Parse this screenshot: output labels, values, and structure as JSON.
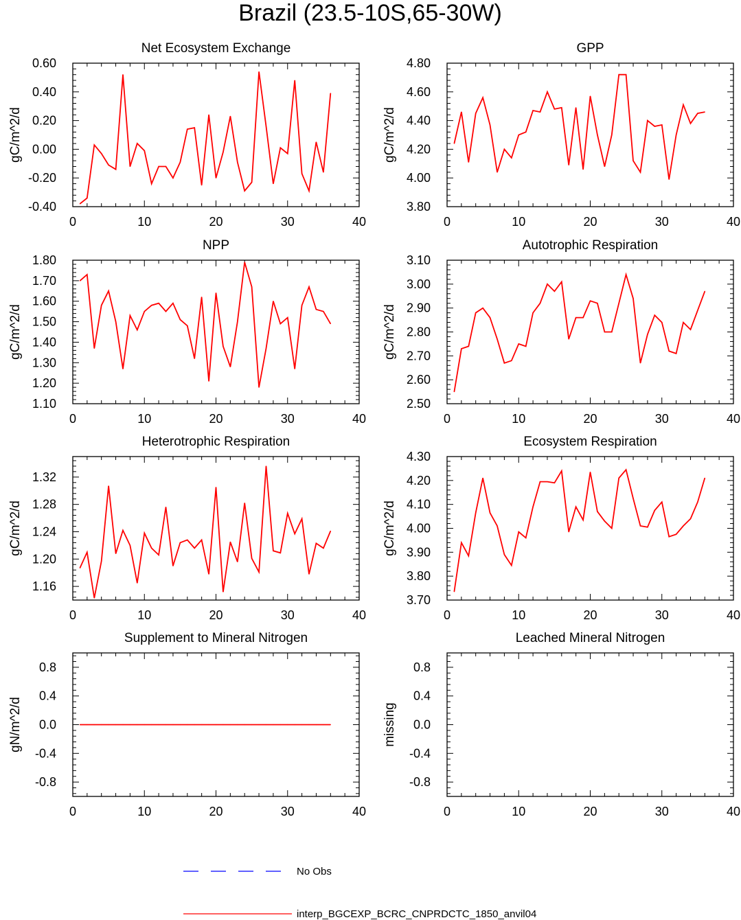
{
  "title": "Brazil (23.5-10S,65-30W)",
  "series_color": "#ff0000",
  "obs_color": "#0000ff",
  "legend": {
    "obs_label": "No Obs",
    "model_label": "interp_BGCEXP_BCRC_CNPRDCTC_1850_anvil04"
  },
  "chart_data": [
    {
      "type": "line",
      "title": "Net Ecosystem Exchange",
      "ylabel": "gC/m^2/d",
      "xlim": [
        0,
        40
      ],
      "ylim": [
        -0.4,
        0.6
      ],
      "xticks": [
        0,
        10,
        20,
        30,
        40
      ],
      "xtick_labels": [
        "0",
        "10",
        "20",
        "30",
        "40"
      ],
      "yticks": [
        -0.4,
        -0.2,
        0.0,
        0.2,
        0.4,
        0.6
      ],
      "ytick_labels": [
        "-0.40",
        "-0.20",
        "0.00",
        "0.20",
        "0.40",
        "0.60"
      ],
      "x": [
        1,
        2,
        3,
        4,
        5,
        6,
        7,
        8,
        9,
        10,
        11,
        12,
        13,
        14,
        15,
        16,
        17,
        18,
        19,
        20,
        21,
        22,
        23,
        24,
        25,
        26,
        27,
        28,
        29,
        30,
        31,
        32,
        33,
        34,
        35,
        36
      ],
      "values": [
        -0.38,
        -0.34,
        0.03,
        -0.03,
        -0.11,
        -0.14,
        0.52,
        -0.12,
        0.04,
        -0.01,
        -0.24,
        -0.12,
        -0.12,
        -0.2,
        -0.09,
        0.14,
        0.15,
        -0.25,
        0.24,
        -0.2,
        -0.02,
        0.23,
        -0.09,
        -0.29,
        -0.23,
        0.54,
        0.16,
        -0.24,
        0.01,
        -0.03,
        0.48,
        -0.17,
        -0.29,
        0.05,
        -0.16,
        0.39
      ]
    },
    {
      "type": "line",
      "title": "GPP",
      "ylabel": "gC/m^2/d",
      "xlim": [
        0,
        40
      ],
      "ylim": [
        3.8,
        4.8
      ],
      "xticks": [
        0,
        10,
        20,
        30,
        40
      ],
      "xtick_labels": [
        "0",
        "10",
        "20",
        "30",
        "40"
      ],
      "yticks": [
        3.8,
        4.0,
        4.2,
        4.4,
        4.6,
        4.8
      ],
      "ytick_labels": [
        "3.80",
        "4.00",
        "4.20",
        "4.40",
        "4.60",
        "4.80"
      ],
      "x": [
        1,
        2,
        3,
        4,
        5,
        6,
        7,
        8,
        9,
        10,
        11,
        12,
        13,
        14,
        15,
        16,
        17,
        18,
        19,
        20,
        21,
        22,
        23,
        24,
        25,
        26,
        27,
        28,
        29,
        30,
        31,
        32,
        33,
        34,
        35,
        36
      ],
      "values": [
        4.24,
        4.46,
        4.11,
        4.45,
        4.56,
        4.37,
        4.04,
        4.2,
        4.14,
        4.3,
        4.32,
        4.47,
        4.46,
        4.6,
        4.48,
        4.49,
        4.09,
        4.49,
        4.06,
        4.57,
        4.3,
        4.08,
        4.3,
        4.72,
        4.72,
        4.12,
        4.04,
        4.4,
        4.36,
        4.37,
        3.99,
        4.3,
        4.51,
        4.38,
        4.45,
        4.46
      ]
    },
    {
      "type": "line",
      "title": "NPP",
      "ylabel": "gC/m^2/d",
      "xlim": [
        0,
        40
      ],
      "ylim": [
        1.1,
        1.8
      ],
      "xticks": [
        0,
        10,
        20,
        30,
        40
      ],
      "xtick_labels": [
        "0",
        "10",
        "20",
        "30",
        "40"
      ],
      "yticks": [
        1.1,
        1.2,
        1.3,
        1.4,
        1.5,
        1.6,
        1.7,
        1.8
      ],
      "ytick_labels": [
        "1.10",
        "1.20",
        "1.30",
        "1.40",
        "1.50",
        "1.60",
        "1.70",
        "1.80"
      ],
      "x": [
        1,
        2,
        3,
        4,
        5,
        6,
        7,
        8,
        9,
        10,
        11,
        12,
        13,
        14,
        15,
        16,
        17,
        18,
        19,
        20,
        21,
        22,
        23,
        24,
        25,
        26,
        27,
        28,
        29,
        30,
        31,
        32,
        33,
        34,
        35,
        36
      ],
      "values": [
        1.7,
        1.73,
        1.37,
        1.58,
        1.65,
        1.5,
        1.27,
        1.53,
        1.46,
        1.55,
        1.58,
        1.59,
        1.55,
        1.59,
        1.51,
        1.48,
        1.32,
        1.62,
        1.21,
        1.64,
        1.38,
        1.28,
        1.5,
        1.79,
        1.67,
        1.18,
        1.37,
        1.6,
        1.49,
        1.52,
        1.27,
        1.58,
        1.67,
        1.56,
        1.55,
        1.49
      ]
    },
    {
      "type": "line",
      "title": "Autotrophic Respiration",
      "ylabel": "gC/m^2/d",
      "xlim": [
        0,
        40
      ],
      "ylim": [
        2.5,
        3.1
      ],
      "xticks": [
        0,
        10,
        20,
        30,
        40
      ],
      "xtick_labels": [
        "0",
        "10",
        "20",
        "30",
        "40"
      ],
      "yticks": [
        2.5,
        2.6,
        2.7,
        2.8,
        2.9,
        3.0,
        3.1
      ],
      "ytick_labels": [
        "2.50",
        "2.60",
        "2.70",
        "2.80",
        "2.90",
        "3.00",
        "3.10"
      ],
      "x": [
        1,
        2,
        3,
        4,
        5,
        6,
        7,
        8,
        9,
        10,
        11,
        12,
        13,
        14,
        15,
        16,
        17,
        18,
        19,
        20,
        21,
        22,
        23,
        24,
        25,
        26,
        27,
        28,
        29,
        30,
        31,
        32,
        33,
        34,
        35,
        36
      ],
      "values": [
        2.55,
        2.73,
        2.74,
        2.88,
        2.9,
        2.86,
        2.77,
        2.67,
        2.68,
        2.75,
        2.74,
        2.88,
        2.92,
        3.0,
        2.97,
        3.01,
        2.77,
        2.86,
        2.86,
        2.93,
        2.92,
        2.8,
        2.8,
        2.92,
        3.04,
        2.94,
        2.67,
        2.79,
        2.87,
        2.84,
        2.72,
        2.71,
        2.84,
        2.81,
        2.89,
        2.97
      ]
    },
    {
      "type": "line",
      "title": "Heterotrophic Respiration",
      "ylabel": "gC/m^2/d",
      "xlim": [
        0,
        40
      ],
      "ylim": [
        1.14,
        1.35
      ],
      "xticks": [
        0,
        10,
        20,
        30,
        40
      ],
      "xtick_labels": [
        "0",
        "10",
        "20",
        "30",
        "40"
      ],
      "yticks": [
        1.16,
        1.2,
        1.24,
        1.28,
        1.32
      ],
      "ytick_labels": [
        "1.16",
        "1.20",
        "1.24",
        "1.28",
        "1.32"
      ],
      "x": [
        1,
        2,
        3,
        4,
        5,
        6,
        7,
        8,
        9,
        10,
        11,
        12,
        13,
        14,
        15,
        16,
        17,
        18,
        19,
        20,
        21,
        22,
        23,
        24,
        25,
        26,
        27,
        28,
        29,
        30,
        31,
        32,
        33,
        34,
        35,
        36
      ],
      "values": [
        1.187,
        1.21,
        1.143,
        1.197,
        1.307,
        1.208,
        1.242,
        1.22,
        1.165,
        1.238,
        1.216,
        1.206,
        1.276,
        1.19,
        1.224,
        1.228,
        1.216,
        1.228,
        1.178,
        1.305,
        1.152,
        1.225,
        1.196,
        1.282,
        1.201,
        1.181,
        1.336,
        1.212,
        1.209,
        1.267,
        1.237,
        1.259,
        1.178,
        1.223,
        1.216,
        1.241
      ]
    },
    {
      "type": "line",
      "title": "Ecosystem Respiration",
      "ylabel": "gC/m^2/d",
      "xlim": [
        0,
        40
      ],
      "ylim": [
        3.7,
        4.3
      ],
      "xticks": [
        0,
        10,
        20,
        30,
        40
      ],
      "xtick_labels": [
        "0",
        "10",
        "20",
        "30",
        "40"
      ],
      "yticks": [
        3.7,
        3.8,
        3.9,
        4.0,
        4.1,
        4.2,
        4.3
      ],
      "ytick_labels": [
        "3.70",
        "3.80",
        "3.90",
        "4.00",
        "4.10",
        "4.20",
        "4.30"
      ],
      "x": [
        1,
        2,
        3,
        4,
        5,
        6,
        7,
        8,
        9,
        10,
        11,
        12,
        13,
        14,
        15,
        16,
        17,
        18,
        19,
        20,
        21,
        22,
        23,
        24,
        25,
        26,
        27,
        28,
        29,
        30,
        31,
        32,
        33,
        34,
        35,
        36
      ],
      "values": [
        3.735,
        3.94,
        3.885,
        4.065,
        4.21,
        4.065,
        4.01,
        3.89,
        3.845,
        3.985,
        3.96,
        4.09,
        4.195,
        4.195,
        4.19,
        4.24,
        3.985,
        4.09,
        4.035,
        4.235,
        4.07,
        4.03,
        4.0,
        4.21,
        4.245,
        4.125,
        4.01,
        4.005,
        4.075,
        4.11,
        3.965,
        3.975,
        4.01,
        4.04,
        4.11,
        4.21
      ]
    },
    {
      "type": "line",
      "title": "Supplement to Mineral Nitrogen",
      "ylabel": "gN/m^2/d",
      "xlim": [
        0,
        40
      ],
      "ylim": [
        -1.0,
        1.0
      ],
      "xticks": [
        0,
        10,
        20,
        30,
        40
      ],
      "xtick_labels": [
        "0",
        "10",
        "20",
        "30",
        "40"
      ],
      "yticks": [
        -0.8,
        -0.4,
        0.0,
        0.4,
        0.8
      ],
      "ytick_labels": [
        "-0.8",
        "-0.4",
        "0.0",
        "0.4",
        "0.8"
      ],
      "x": [
        1,
        2,
        3,
        4,
        5,
        6,
        7,
        8,
        9,
        10,
        11,
        12,
        13,
        14,
        15,
        16,
        17,
        18,
        19,
        20,
        21,
        22,
        23,
        24,
        25,
        26,
        27,
        28,
        29,
        30,
        31,
        32,
        33,
        34,
        35,
        36
      ],
      "values": [
        0,
        0,
        0,
        0,
        0,
        0,
        0,
        0,
        0,
        0,
        0,
        0,
        0,
        0,
        0,
        0,
        0,
        0,
        0,
        0,
        0,
        0,
        0,
        0,
        0,
        0,
        0,
        0,
        0,
        0,
        0,
        0,
        0,
        0,
        0,
        0
      ]
    },
    {
      "type": "line",
      "title": "Leached Mineral Nitrogen",
      "ylabel": "missing",
      "xlim": [
        0,
        40
      ],
      "ylim": [
        -1.0,
        1.0
      ],
      "xticks": [
        0,
        10,
        20,
        30,
        40
      ],
      "xtick_labels": [
        "0",
        "10",
        "20",
        "30",
        "40"
      ],
      "yticks": [
        -0.8,
        -0.4,
        0.0,
        0.4,
        0.8
      ],
      "ytick_labels": [
        "-0.8",
        "-0.4",
        "0.0",
        "0.4",
        "0.8"
      ],
      "x": [],
      "values": []
    }
  ]
}
